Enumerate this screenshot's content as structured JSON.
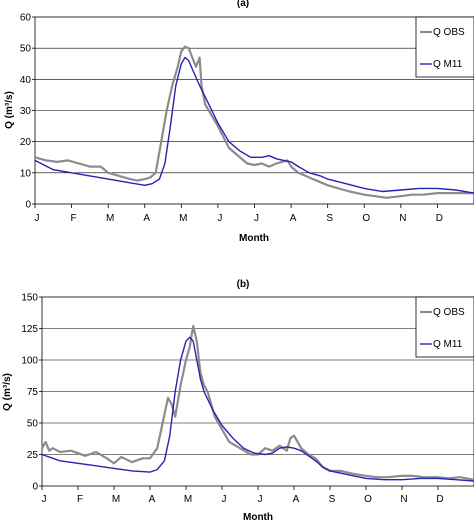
{
  "chart_data": [
    {
      "type": "line",
      "title": "(a)",
      "xlabel": "Month",
      "ylabel": "Q (m³/s)",
      "ylim": [
        0,
        60
      ],
      "yticks": [
        "0",
        "10",
        "20",
        "30",
        "40",
        "50",
        "60"
      ],
      "months": [
        "J",
        "F",
        "M",
        "A",
        "M",
        "J",
        "J",
        "A",
        "S",
        "O",
        "N",
        "D"
      ],
      "xlim": [
        0,
        12
      ],
      "grid": "horizontal",
      "legend_position": "right",
      "series": [
        {
          "name": "Q OBS",
          "color": "#8c8c8c",
          "x": [
            0,
            0.3,
            0.6,
            0.9,
            1.2,
            1.5,
            1.8,
            2.0,
            2.3,
            2.6,
            2.8,
            3.0,
            3.15,
            3.3,
            3.45,
            3.6,
            3.75,
            3.9,
            4.0,
            4.1,
            4.2,
            4.3,
            4.4,
            4.5,
            4.55,
            4.65,
            4.75,
            5.0,
            5.3,
            5.5,
            5.8,
            6.0,
            6.2,
            6.4,
            6.6,
            6.75,
            6.9,
            7.0,
            7.2,
            7.4,
            7.6,
            7.8,
            8.0,
            8.3,
            8.6,
            9.0,
            9.3,
            9.6,
            10.0,
            10.3,
            10.6,
            11.0,
            11.3,
            11.6,
            12.0
          ],
          "y": [
            15,
            14,
            13.5,
            14,
            13,
            12,
            12,
            10,
            9,
            8,
            7.5,
            8,
            8.5,
            10,
            20,
            30,
            38,
            44,
            49,
            50.5,
            50,
            47,
            44,
            47,
            38,
            32,
            30,
            25,
            18,
            16,
            13,
            12.5,
            13,
            12,
            13,
            13.5,
            14,
            12,
            10,
            9,
            8,
            7,
            6,
            5,
            4,
            3,
            2.5,
            2,
            2.5,
            3,
            3,
            3.5,
            3.5,
            3.5,
            3.5
          ]
        },
        {
          "name": "Q M11",
          "color": "#2323b4",
          "x": [
            0,
            0.5,
            1.0,
            1.5,
            2.0,
            2.5,
            3.0,
            3.2,
            3.4,
            3.55,
            3.7,
            3.85,
            4.0,
            4.1,
            4.2,
            4.35,
            4.5,
            4.75,
            5.0,
            5.3,
            5.6,
            5.9,
            6.2,
            6.4,
            6.6,
            6.8,
            7.0,
            7.2,
            7.5,
            7.8,
            8.0,
            8.5,
            9.0,
            9.5,
            10.0,
            10.5,
            11.0,
            11.5,
            12.0
          ],
          "y": [
            14,
            11,
            10,
            9,
            8,
            7,
            6,
            6.5,
            8,
            13,
            25,
            38,
            45,
            47,
            46,
            42,
            38,
            32,
            26,
            20,
            17,
            15,
            15,
            15.5,
            14.5,
            14,
            13.5,
            12,
            10,
            9,
            8,
            6.5,
            5,
            4,
            4.5,
            5,
            5,
            4.5,
            3.5
          ]
        }
      ]
    },
    {
      "type": "line",
      "title": "(b)",
      "xlabel": "Month",
      "ylabel": "Q (m³/s)",
      "ylim": [
        0,
        150
      ],
      "yticks": [
        "0",
        "25",
        "50",
        "75",
        "100",
        "125",
        "150"
      ],
      "months": [
        "J",
        "F",
        "M",
        "A",
        "M",
        "J",
        "J",
        "A",
        "S",
        "O",
        "N",
        "D"
      ],
      "xlim": [
        0,
        12
      ],
      "grid": "horizontal",
      "legend_position": "right",
      "series": [
        {
          "name": "Q OBS",
          "color": "#8c8c8c",
          "x": [
            0,
            0.1,
            0.2,
            0.3,
            0.5,
            0.8,
            1.0,
            1.2,
            1.5,
            1.8,
            2.0,
            2.2,
            2.5,
            2.8,
            3.0,
            3.2,
            3.35,
            3.5,
            3.6,
            3.7,
            3.85,
            4.0,
            4.1,
            4.2,
            4.3,
            4.4,
            4.5,
            4.6,
            4.7,
            4.8,
            5.0,
            5.2,
            5.5,
            5.8,
            6.0,
            6.2,
            6.4,
            6.6,
            6.8,
            6.9,
            7.0,
            7.2,
            7.4,
            7.6,
            7.8,
            8.0,
            8.3,
            8.6,
            9.0,
            9.3,
            9.6,
            10.0,
            10.3,
            10.6,
            11.0,
            11.3,
            11.6,
            11.8,
            12.0
          ],
          "y": [
            30,
            35,
            28,
            30,
            27,
            28,
            26,
            24,
            27,
            22,
            18,
            23,
            19,
            22,
            22,
            30,
            50,
            70,
            65,
            55,
            80,
            100,
            110,
            127,
            115,
            90,
            80,
            75,
            65,
            55,
            45,
            35,
            30,
            25,
            25,
            30,
            28,
            32,
            28,
            38,
            40,
            30,
            25,
            22,
            15,
            12,
            12,
            10,
            8,
            7,
            7,
            8,
            8,
            7,
            7,
            6,
            7,
            6,
            5
          ]
        },
        {
          "name": "Q M11",
          "color": "#2323b4",
          "x": [
            0,
            0.5,
            1.0,
            1.5,
            2.0,
            2.5,
            3.0,
            3.2,
            3.4,
            3.55,
            3.7,
            3.85,
            4.0,
            4.1,
            4.2,
            4.3,
            4.4,
            4.5,
            4.75,
            5.0,
            5.3,
            5.6,
            5.9,
            6.2,
            6.4,
            6.6,
            6.8,
            7.0,
            7.2,
            7.4,
            7.6,
            7.8,
            8.0,
            8.5,
            9.0,
            9.5,
            10.0,
            10.5,
            11.0,
            11.5,
            12.0
          ],
          "y": [
            25,
            20,
            18,
            16,
            14,
            12,
            11,
            13,
            20,
            40,
            75,
            100,
            115,
            118,
            115,
            100,
            85,
            75,
            60,
            48,
            38,
            30,
            26,
            25,
            26,
            30,
            31,
            30,
            28,
            24,
            20,
            15,
            12,
            9,
            6,
            5,
            5,
            6,
            6,
            5,
            4
          ]
        }
      ]
    }
  ]
}
